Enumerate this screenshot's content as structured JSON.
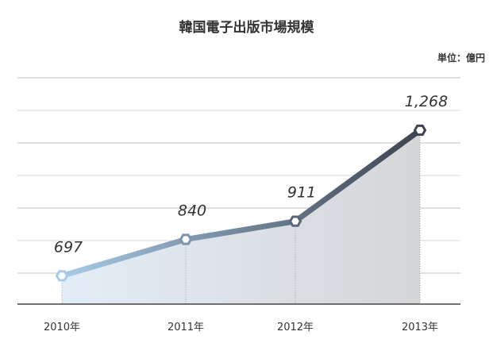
{
  "title": "韓国電子出版市場規模",
  "unit": "単位：億円",
  "chart_data": {
    "type": "area",
    "title": "韓国電子出版市場規模",
    "unit": "単位：億円",
    "categories": [
      "2010年",
      "2011年",
      "2012年",
      "2013年"
    ],
    "series": [
      {
        "values": [
          697,
          840,
          911,
          1268
        ]
      }
    ],
    "data_labels": [
      "697",
      "840",
      "911",
      "1,268"
    ],
    "grid": true,
    "colors": {
      "line_start": "#a8cbe6",
      "line_end": "#3d4350",
      "fill_start": "#e3edf7",
      "fill_end": "#d5d6d8"
    }
  }
}
